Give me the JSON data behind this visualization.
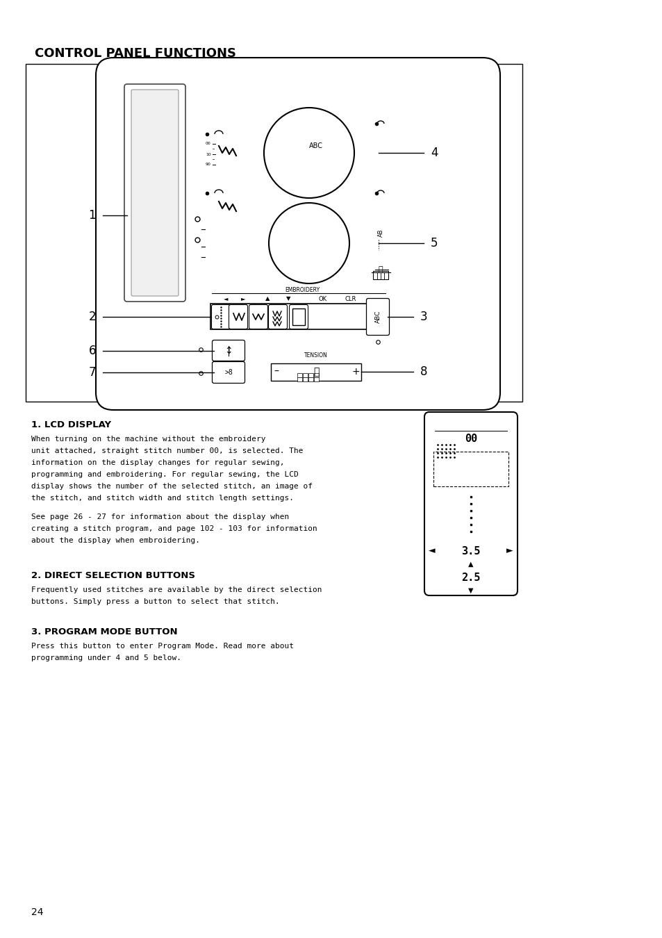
{
  "title": "CONTROL PANEL FUNCTIONS",
  "page_number": "24",
  "bg_color": "#ffffff",
  "text_color": "#000000",
  "body1_line1": "When turning on the machine without the embroidery",
  "body1_line2": "unit attached, straight stitch number 00, is selected. The",
  "body1_line3": "information on the display changes for regular sewing,",
  "body1_line4": "programming and embroidering. For regular sewing, the LCD",
  "body1_line5": "display shows the number of the selected stitch, an image of",
  "body1_line6": "the stitch, and stitch width and stitch length settings.",
  "body1b_line1": "See page 26 - 27 for information about the display when",
  "body1b_line2": "creating a stitch program, and page 102 - 103 for information",
  "body1b_line3": "about the display when embroidering.",
  "body2_line1": "Frequently used stitches are available by the direct selection",
  "body2_line2": "buttons. Simply press a button to select that stitch.",
  "body3_line1": "Press this button to enter Program Mode. Read more about",
  "body3_line2": "programming under 4 and 5 below."
}
